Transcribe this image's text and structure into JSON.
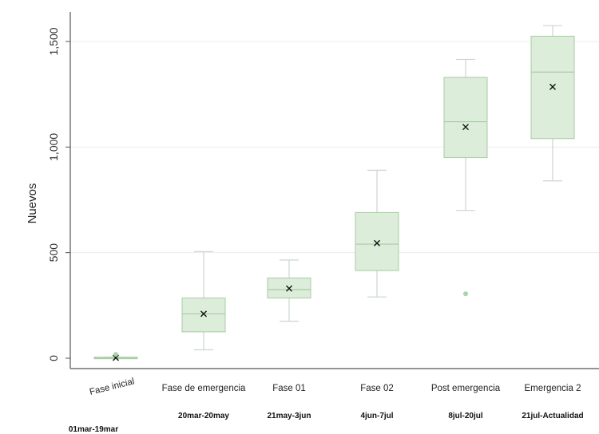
{
  "chart_data": {
    "type": "box",
    "ylabel": "Nuevos",
    "xlabel": "",
    "ylim": [
      -50,
      1650
    ],
    "yticks": [
      0,
      500,
      1000,
      1500
    ],
    "ytick_labels": [
      "0",
      "500",
      "1,000",
      "1,500"
    ],
    "grid": true,
    "colors": {
      "box_fill": "#dcedda",
      "box_edge": "#a8cba4",
      "whisker": "#cfd8cf",
      "outlier": "#a9d4a7",
      "mean_marker": "#111111",
      "gridline": "#ececec"
    },
    "categories": [
      {
        "label": "Fase inicial",
        "period": "01mar-19mar",
        "min": 0,
        "q1": 0,
        "median": 0,
        "q3": 5,
        "max": 5,
        "mean": 2,
        "outliers": [
          18
        ]
      },
      {
        "label": "Fase de emergencia",
        "period": "20mar-20may",
        "min": 40,
        "q1": 125,
        "median": 210,
        "q3": 285,
        "max": 505,
        "mean": 210,
        "outliers": []
      },
      {
        "label": "Fase 01",
        "period": "21may-3jun",
        "min": 175,
        "q1": 285,
        "median": 325,
        "q3": 380,
        "max": 465,
        "mean": 330,
        "outliers": []
      },
      {
        "label": "Fase 02",
        "period": "4jun-7jul",
        "min": 290,
        "q1": 415,
        "median": 540,
        "q3": 690,
        "max": 890,
        "mean": 545,
        "outliers": []
      },
      {
        "label": "Post emergencia",
        "period": "8jul-20jul",
        "min": 700,
        "q1": 950,
        "median": 1120,
        "q3": 1330,
        "max": 1415,
        "mean": 1095,
        "outliers": [
          305
        ]
      },
      {
        "label": "Emergencia 2",
        "period": "21jul-Actualidad",
        "min": 840,
        "q1": 1040,
        "median": 1355,
        "q3": 1525,
        "max": 1575,
        "mean": 1285,
        "outliers": []
      }
    ]
  }
}
